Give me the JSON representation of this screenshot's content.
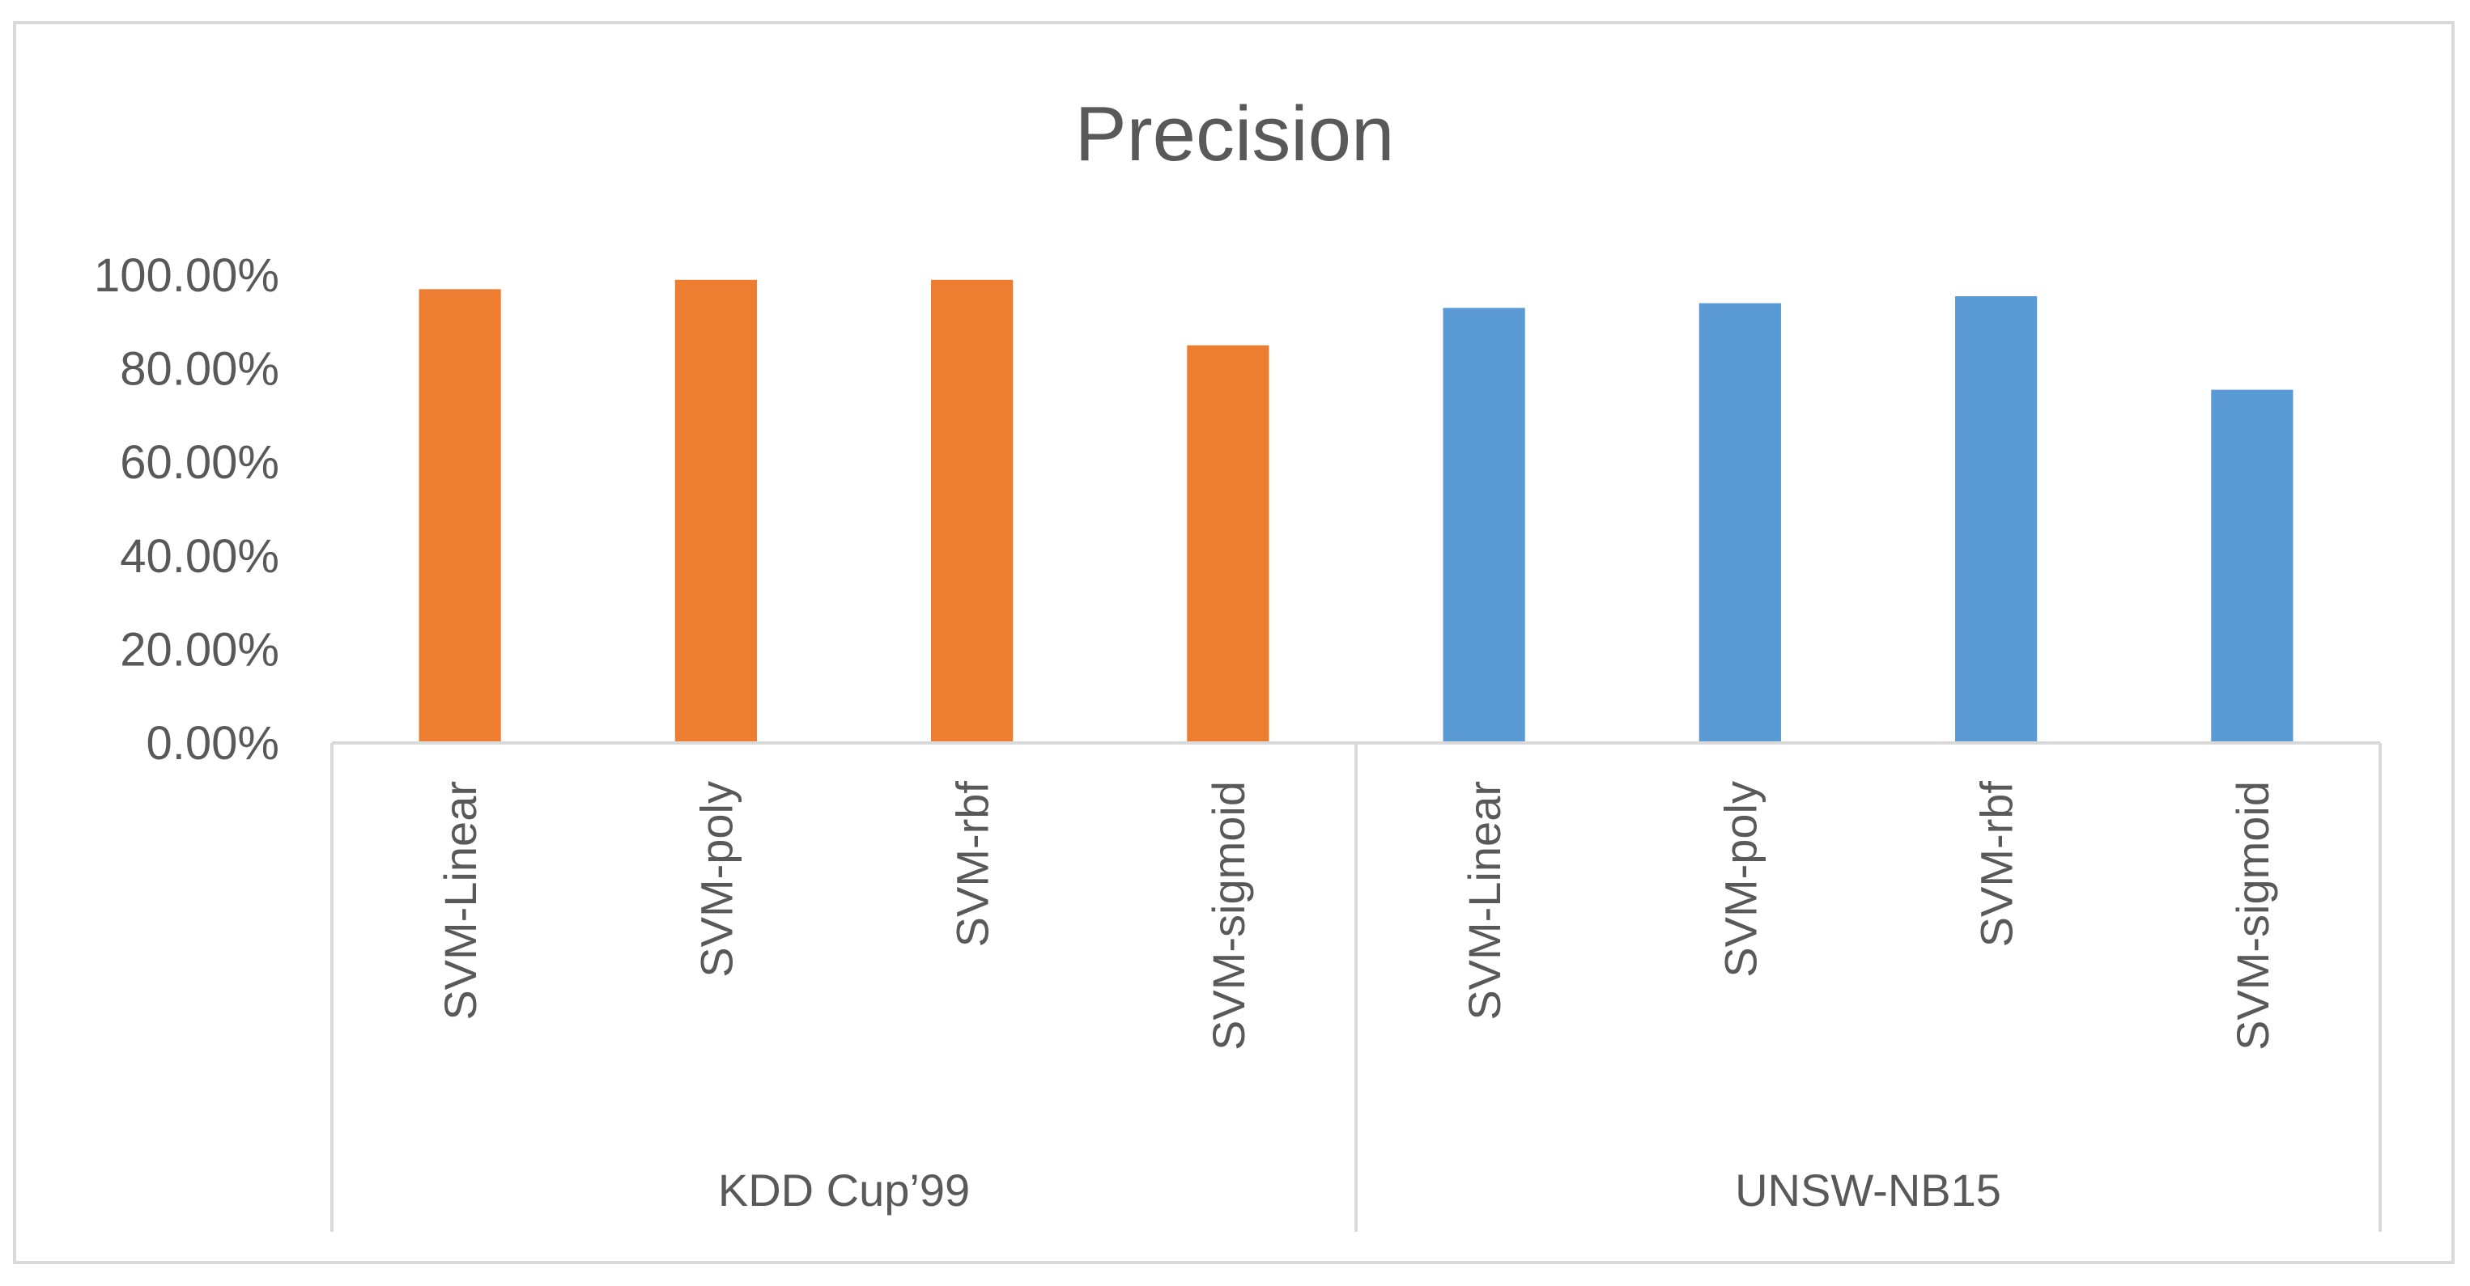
{
  "chart_data": {
    "type": "bar",
    "title": "Precision",
    "xlabel": "",
    "ylabel": "",
    "ylim": [
      0,
      1
    ],
    "yticks": [
      "0.00%",
      "20.00%",
      "40.00%",
      "60.00%",
      "80.00%",
      "100.00%"
    ],
    "grid": false,
    "legend": "none",
    "groups": [
      {
        "name": "KDD Cup’99",
        "color": "#ED7D31",
        "categories": [
          "SVM-Linear",
          "SVM-poly",
          "SVM-rbf",
          "SVM-sigmoid"
        ],
        "values": [
          0.97,
          0.99,
          0.99,
          0.85
        ]
      },
      {
        "name": "UNSW-NB15",
        "color": "#5B9BD5",
        "categories": [
          "SVM-Linear",
          "SVM-poly",
          "SVM-rbf",
          "SVM-sigmoid"
        ],
        "values": [
          0.93,
          0.94,
          0.955,
          0.755
        ]
      }
    ]
  }
}
